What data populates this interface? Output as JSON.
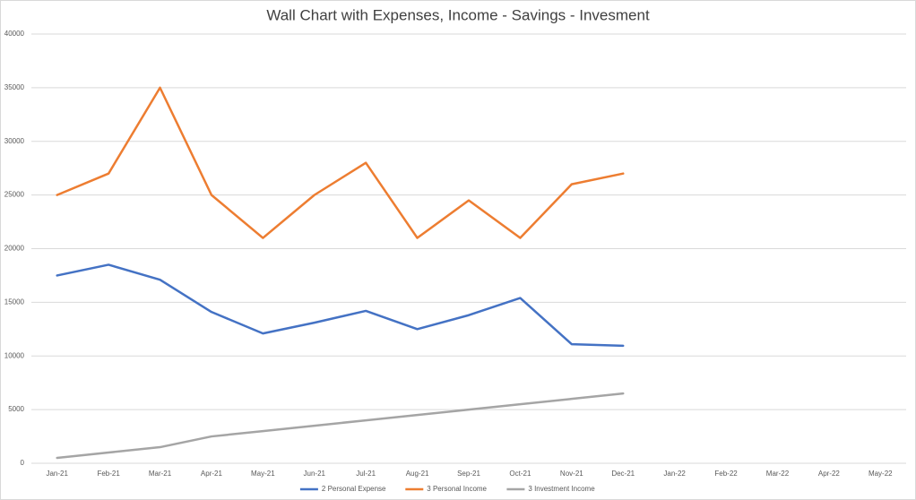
{
  "chart_data": {
    "type": "line",
    "title": "Wall Chart with Expenses, Income - Savings - Invesment",
    "categories": [
      "Jan-21",
      "Feb-21",
      "Mar-21",
      "Apr-21",
      "May-21",
      "Jun-21",
      "Jul-21",
      "Aug-21",
      "Sep-21",
      "Oct-21",
      "Nov-21",
      "Dec-21",
      "Jan-22",
      "Feb-22",
      "Mar-22",
      "Apr-22",
      "May-22"
    ],
    "series": [
      {
        "name": "2 Personal Expense",
        "color": "#4472c4",
        "values": [
          17500,
          18500,
          17100,
          14100,
          12100,
          13100,
          14200,
          12500,
          13800,
          15400,
          11100,
          10950,
          null,
          null,
          null,
          null,
          null
        ]
      },
      {
        "name": "3 Personal Income",
        "color": "#ed7d31",
        "values": [
          25000,
          27000,
          35000,
          25000,
          21000,
          25000,
          28000,
          21000,
          24500,
          21000,
          26000,
          27000,
          null,
          null,
          null,
          null,
          null
        ]
      },
      {
        "name": "3 Investment Income",
        "color": "#a5a5a5",
        "values": [
          500,
          1000,
          1500,
          2500,
          3000,
          3500,
          4000,
          4500,
          5000,
          5500,
          6000,
          6500,
          null,
          null,
          null,
          null,
          null
        ]
      }
    ],
    "ylim": [
      0,
      40000
    ],
    "yticks": [
      0,
      5000,
      10000,
      15000,
      20000,
      25000,
      30000,
      35000,
      40000
    ],
    "grid": true,
    "legend": "bottom"
  }
}
